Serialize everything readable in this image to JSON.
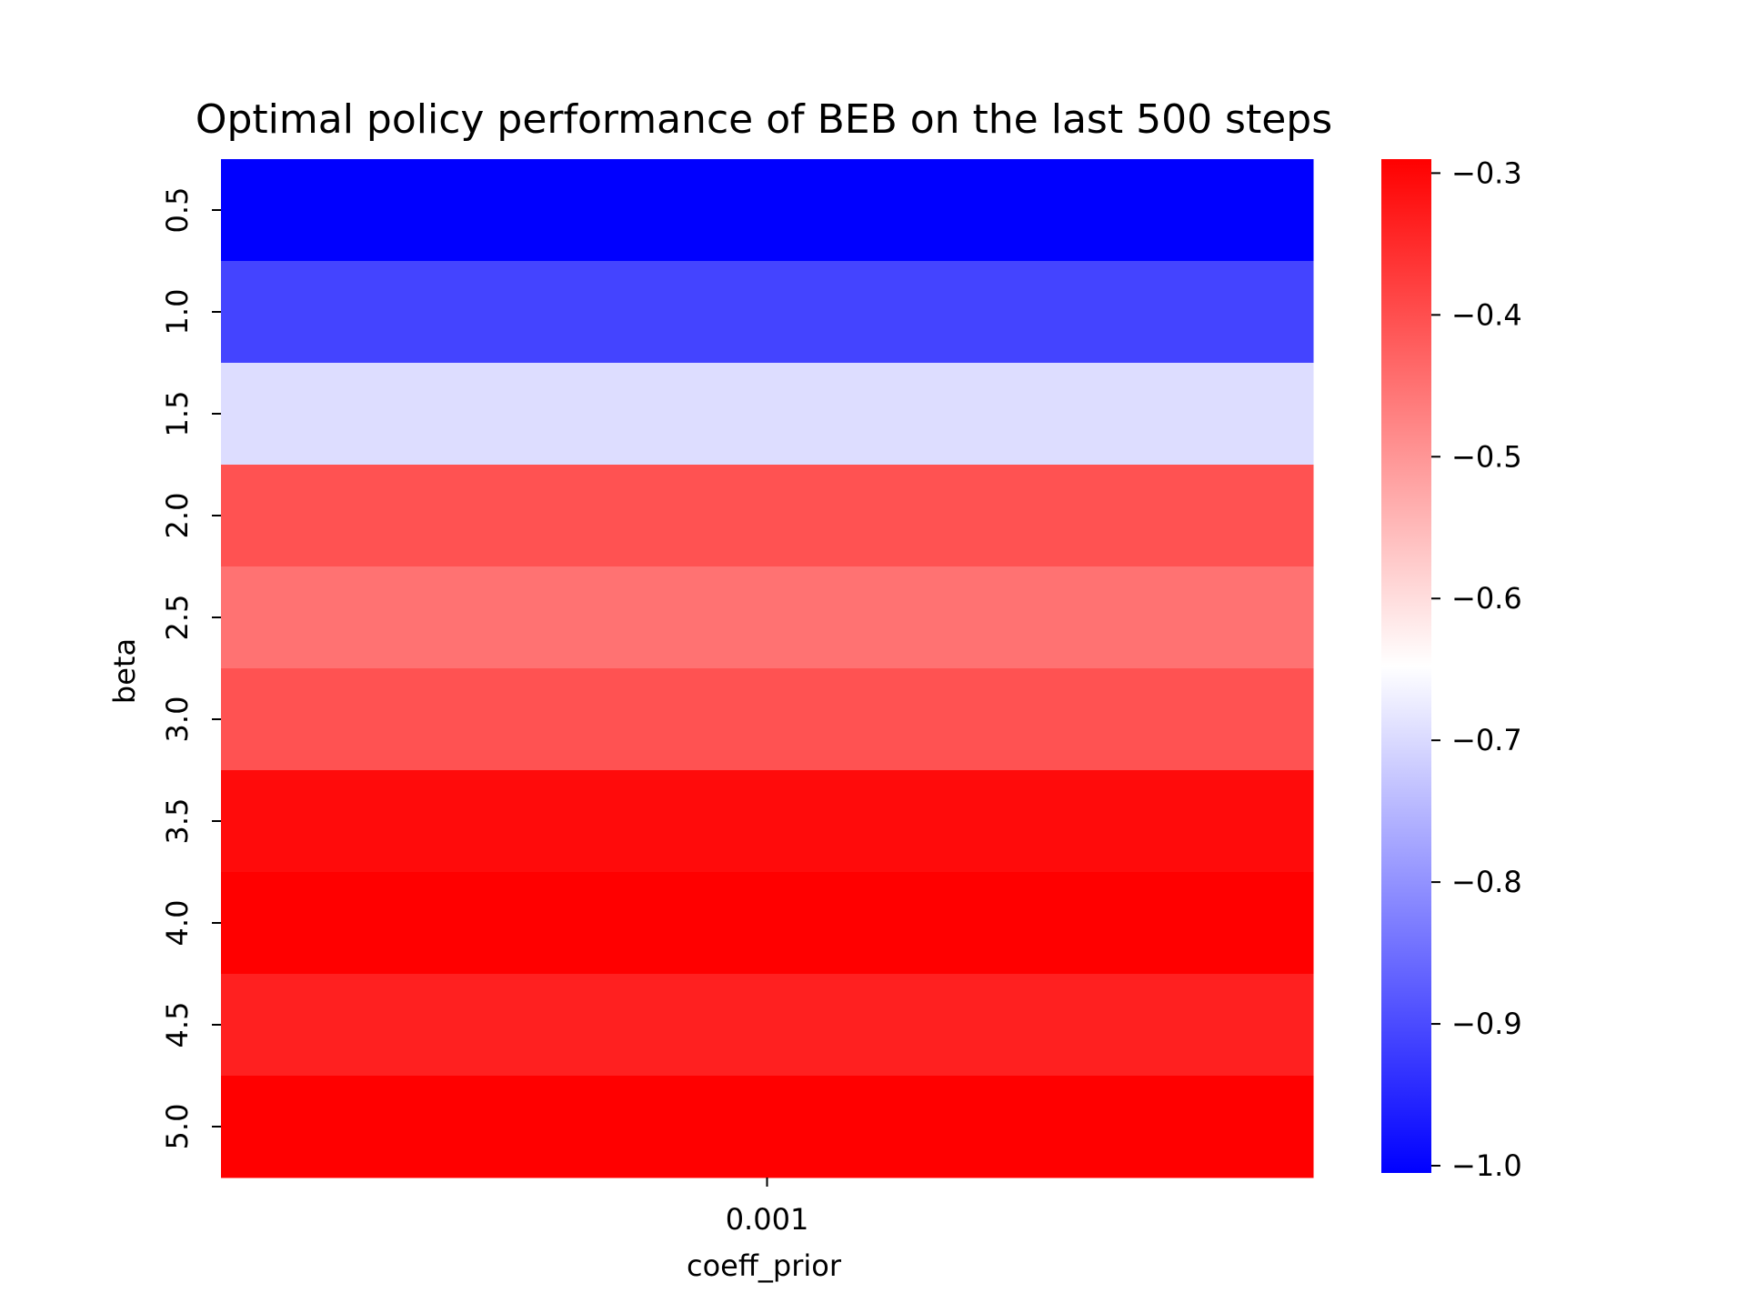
{
  "chart_data": {
    "type": "heatmap",
    "title": "Optimal policy performance of BEB on the last 500 steps",
    "xlabel": "coeff_prior",
    "ylabel": "beta",
    "x_categories": [
      "0.001"
    ],
    "y_categories": [
      "0.5",
      "1.0",
      "1.5",
      "2.0",
      "2.5",
      "3.0",
      "3.5",
      "4.0",
      "4.5",
      "5.0"
    ],
    "values": [
      [
        -1.0
      ],
      [
        -0.905
      ],
      [
        -0.69
      ],
      [
        -0.4
      ],
      [
        -0.445
      ],
      [
        -0.4
      ],
      [
        -0.3
      ],
      [
        -0.285
      ],
      [
        -0.33
      ],
      [
        -0.285
      ]
    ],
    "colorbar": {
      "ticks": [
        "−0.3",
        "−0.4",
        "−0.5",
        "−0.6",
        "−0.7",
        "−0.8",
        "−0.9",
        "−1.0"
      ],
      "tick_values": [
        -0.3,
        -0.4,
        -0.5,
        -0.6,
        -0.7,
        -0.8,
        -0.9,
        -1.0
      ],
      "vmin": -1.0,
      "vmax": -0.285,
      "colors": [
        "#0000ff",
        "#ffffff",
        "#ff0000"
      ]
    },
    "legend_placement": "right",
    "grid": false
  }
}
